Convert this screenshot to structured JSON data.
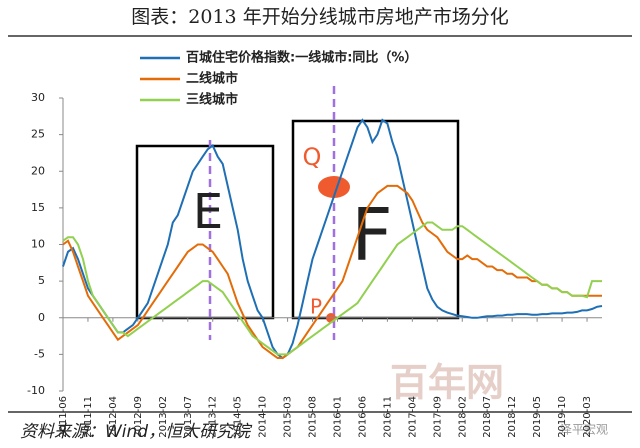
{
  "chart_data": {
    "type": "line",
    "title": "图表：2013 年开始分线城市房地产市场分化",
    "source": "资料来源：Wind，恒大研究院",
    "annotations": [
      "E",
      "F",
      "Q",
      "P"
    ],
    "watermarks": [
      "百年网",
      "泽平宏观"
    ],
    "categories": [
      "2011-06",
      null,
      null,
      null,
      null,
      "2011-11",
      null,
      null,
      null,
      null,
      "2012-04",
      null,
      null,
      null,
      null,
      "2012-09",
      null,
      null,
      null,
      null,
      "2013-02",
      null,
      null,
      null,
      null,
      "2013-07",
      null,
      null,
      null,
      null,
      "2013-12",
      null,
      null,
      null,
      null,
      "2014-05",
      null,
      null,
      null,
      null,
      "2014-10",
      null,
      null,
      null,
      null,
      "2015-03",
      null,
      null,
      null,
      null,
      "2015-08",
      null,
      null,
      null,
      null,
      "2016-01",
      null,
      null,
      null,
      null,
      "2016-06",
      null,
      null,
      null,
      null,
      "2016-11",
      null,
      null,
      null,
      null,
      "2017-04",
      null,
      null,
      null,
      null,
      "2017-09",
      null,
      null,
      null,
      null,
      "2018-02",
      null,
      null,
      null,
      null,
      "2018-07",
      null,
      null,
      null,
      null,
      "2018-12",
      null,
      null,
      null,
      null,
      "2019-05",
      null,
      null,
      null,
      null,
      "2019-10",
      null,
      null,
      null,
      null,
      "2020-03",
      null,
      null,
      null
    ],
    "series": [
      {
        "name": "百城住宅价格指数:一线城市:同比（%）",
        "color": "#1f6fb5",
        "values": [
          7,
          9,
          9.5,
          8,
          6,
          4,
          3,
          2,
          1,
          0,
          -1,
          -2,
          -2,
          -1.5,
          -1,
          0,
          1,
          2,
          4,
          6,
          8,
          10,
          13,
          14,
          16,
          18,
          20,
          21,
          22,
          23,
          23.5,
          22,
          21,
          18,
          15,
          12,
          8,
          5,
          3,
          1,
          0,
          -2,
          -4,
          -5,
          -5.5,
          -5,
          -3.5,
          -1,
          2,
          5,
          8,
          10,
          12,
          14,
          16,
          18,
          20,
          22,
          24,
          26,
          27,
          26,
          24,
          25,
          27,
          26.5,
          24,
          22,
          19,
          16,
          13,
          10,
          7,
          4,
          2.5,
          1.5,
          1,
          0.7,
          0.5,
          0.3,
          0.2,
          0.1,
          0,
          0,
          0.1,
          0.2,
          0.2,
          0.3,
          0.3,
          0.4,
          0.4,
          0.5,
          0.5,
          0.5,
          0.4,
          0.4,
          0.5,
          0.5,
          0.6,
          0.6,
          0.6,
          0.7,
          0.7,
          0.8,
          1,
          1,
          1.2,
          1.5,
          1.6
        ]
      },
      {
        "name": "二线城市",
        "color": "#e36c09",
        "values": [
          10,
          10.5,
          9,
          7,
          5,
          3,
          2,
          1,
          0,
          -1,
          -2,
          -3,
          -2.5,
          -2,
          -1.5,
          -1,
          0,
          1,
          2,
          3,
          4,
          5,
          6,
          7,
          8,
          9,
          9.5,
          10,
          10,
          9.5,
          9,
          8,
          7,
          6,
          4,
          2,
          0.5,
          -1,
          -2,
          -3,
          -4,
          -4.5,
          -5,
          -5.5,
          -5.5,
          -5,
          -4.5,
          -4,
          -3,
          -2,
          -1,
          0,
          1,
          2,
          3,
          4,
          5,
          7,
          9,
          11,
          13,
          15,
          16,
          17,
          17.5,
          18,
          18,
          18,
          17.5,
          17,
          16,
          14.5,
          13,
          12,
          11.5,
          11,
          10,
          9,
          8.5,
          8,
          8,
          8.5,
          8,
          8,
          7.5,
          7,
          7,
          6.5,
          6.5,
          6,
          6,
          5.5,
          5.5,
          5.5,
          5,
          5,
          4.5,
          4.5,
          4,
          4,
          3.5,
          3.5,
          3,
          3,
          3,
          3,
          3,
          3,
          3
        ]
      },
      {
        "name": "三线城市",
        "color": "#92d050",
        "values": [
          10.5,
          11,
          11,
          10,
          8,
          5,
          3,
          2,
          1,
          0,
          -1,
          -2,
          -2,
          -2.5,
          -2,
          -1.5,
          -1,
          -0.5,
          0,
          0.5,
          1,
          1.5,
          2,
          2.5,
          3,
          3.5,
          4,
          4.5,
          5,
          5,
          4.5,
          4,
          3.5,
          2.5,
          1.5,
          0.5,
          -0.5,
          -1.5,
          -2.5,
          -3,
          -3.5,
          -4,
          -4.5,
          -5,
          -5,
          -5,
          -4.5,
          -4,
          -3.5,
          -3,
          -2.5,
          -2,
          -1.5,
          -1,
          -0.5,
          0,
          0.5,
          1,
          1.5,
          2,
          3,
          4,
          5,
          6,
          7,
          8,
          9,
          10,
          10.5,
          11,
          11.5,
          12,
          12.5,
          13,
          13,
          12.5,
          12,
          12,
          12,
          12.5,
          12.5,
          12,
          11.5,
          11,
          10.5,
          10,
          9.5,
          9,
          8.5,
          8,
          7.5,
          7,
          6.5,
          6,
          5.5,
          5,
          4.5,
          4.5,
          4,
          4,
          3.5,
          3.5,
          3,
          3,
          3,
          2.8,
          5,
          5,
          5
        ]
      }
    ],
    "ylim": [
      -10,
      30
    ],
    "yticks": [
      -10,
      -5,
      0,
      5,
      10,
      15,
      20,
      25,
      30
    ],
    "grid": false
  }
}
